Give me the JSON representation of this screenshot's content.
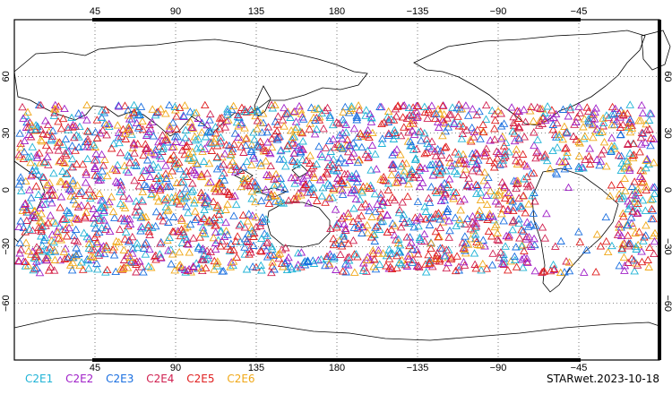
{
  "map": {
    "lon_top_labels": [
      "45",
      "90",
      "135",
      "180",
      "−135",
      "−90",
      "−45"
    ],
    "lon_bottom_labels": [
      "45",
      "90",
      "135",
      "180",
      "−135",
      "−90",
      "−45"
    ],
    "lat_labels": [
      "60",
      "30",
      "0",
      "−30",
      "−60"
    ],
    "graticule": "dotted",
    "marker_shape": "open triangle"
  },
  "legend": {
    "items": [
      {
        "label": "C2E1",
        "color": "#1fb3d6"
      },
      {
        "label": "C2E2",
        "color": "#a020c8"
      },
      {
        "label": "C2E3",
        "color": "#1a6fe0"
      },
      {
        "label": "C2E4",
        "color": "#d02050"
      },
      {
        "label": "C2E5",
        "color": "#e02020"
      },
      {
        "label": "C2E6",
        "color": "#f0a818"
      }
    ]
  },
  "stamp": {
    "text": "STARwet.2023-10-18"
  }
}
